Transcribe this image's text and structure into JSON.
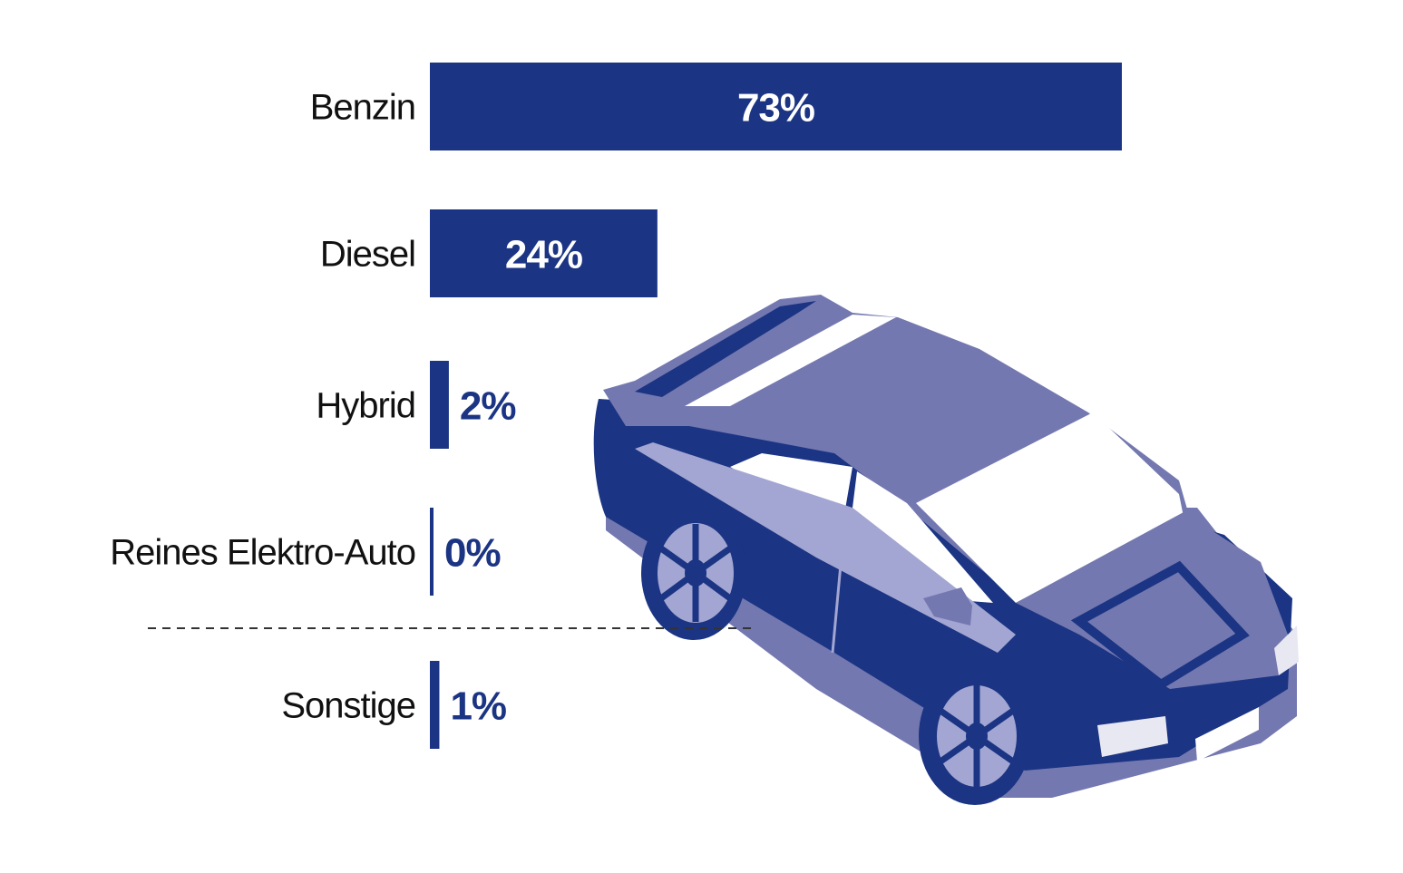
{
  "colors": {
    "bar": "#1b3483",
    "car_dark": "#1b3483",
    "car_mid": "#7478b0",
    "car_light": "#a3a6d2",
    "car_white": "#ffffff",
    "separator": "#333333"
  },
  "illustration": "car-illustration",
  "chart_data": {
    "type": "bar",
    "orientation": "horizontal",
    "categories": [
      "Benzin",
      "Diesel",
      "Hybrid",
      "Reines Elektro-Auto",
      "Sonstige"
    ],
    "values": [
      73,
      24,
      2,
      0,
      1
    ],
    "value_labels": [
      "73%",
      "24%",
      "2%",
      "0%",
      "1%"
    ],
    "unit": "%",
    "xlim": [
      0,
      73
    ],
    "grid": false,
    "legend": "none",
    "separator_before_index": 4
  }
}
